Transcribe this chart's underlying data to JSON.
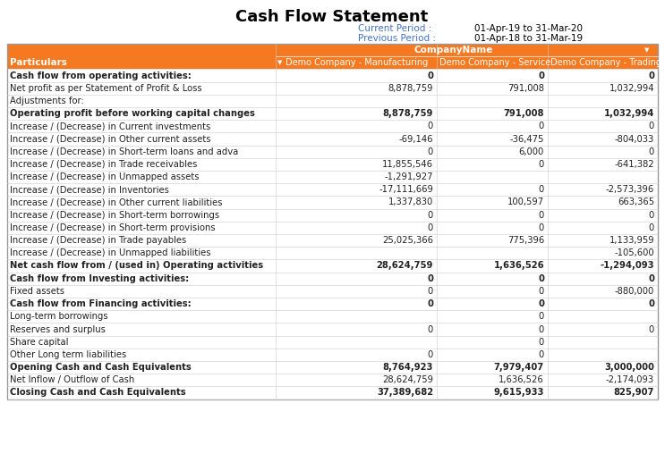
{
  "title": "Cash Flow Statement",
  "current_period_label": "Current Period :",
  "current_period_value": "01-Apr-19 to 31-Mar-20",
  "previous_period_label": "Previous Period :",
  "previous_period_value": "01-Apr-18 to 31-Mar-19",
  "col_header1": "CompanyName",
  "col_headers": [
    "Particulars",
    "Demo Company - Manufacturing",
    "Demo Company - Service",
    "Demo Company - Trading"
  ],
  "rows": [
    {
      "label": "Cash flow from operating activities:",
      "bold": true,
      "values": [
        "0",
        "0",
        "0"
      ]
    },
    {
      "label": "Net profit as per Statement of Profit & Loss",
      "bold": false,
      "values": [
        "8,878,759",
        "791,008",
        "1,032,994"
      ]
    },
    {
      "label": "Adjustments for:",
      "bold": false,
      "values": [
        "",
        "",
        ""
      ]
    },
    {
      "label": "Operating profit before working capital changes",
      "bold": true,
      "values": [
        "8,878,759",
        "791,008",
        "1,032,994"
      ]
    },
    {
      "label": "Increase / (Decrease) in Current investments",
      "bold": false,
      "values": [
        "0",
        "0",
        "0"
      ]
    },
    {
      "label": "Increase / (Decrease) in Other current assets",
      "bold": false,
      "values": [
        "-69,146",
        "-36,475",
        "-804,033"
      ]
    },
    {
      "label": "Increase / (Decrease) in Short-term loans and adva",
      "bold": false,
      "values": [
        "0",
        "6,000",
        "0"
      ]
    },
    {
      "label": "Increase / (Decrease) in Trade receivables",
      "bold": false,
      "values": [
        "11,855,546",
        "0",
        "-641,382"
      ]
    },
    {
      "label": "Increase / (Decrease) in Unmapped assets",
      "bold": false,
      "values": [
        "-1,291,927",
        "",
        ""
      ]
    },
    {
      "label": "Increase / (Decrease) in Inventories",
      "bold": false,
      "values": [
        "-17,111,669",
        "0",
        "-2,573,396"
      ]
    },
    {
      "label": "Increase / (Decrease) in Other current liabilities",
      "bold": false,
      "values": [
        "1,337,830",
        "100,597",
        "663,365"
      ]
    },
    {
      "label": "Increase / (Decrease) in Short-term borrowings",
      "bold": false,
      "values": [
        "0",
        "0",
        "0"
      ]
    },
    {
      "label": "Increase / (Decrease) in Short-term provisions",
      "bold": false,
      "values": [
        "0",
        "0",
        "0"
      ]
    },
    {
      "label": "Increase / (Decrease) in Trade payables",
      "bold": false,
      "values": [
        "25,025,366",
        "775,396",
        "1,133,959"
      ]
    },
    {
      "label": "Increase / (Decrease) in Unmapped liabilities",
      "bold": false,
      "values": [
        "",
        "",
        "-105,600"
      ]
    },
    {
      "label": "Net cash flow from / (used in) Operating activities",
      "bold": true,
      "values": [
        "28,624,759",
        "1,636,526",
        "-1,294,093"
      ]
    },
    {
      "label": "Cash flow from Investing activities:",
      "bold": true,
      "values": [
        "0",
        "0",
        "0"
      ]
    },
    {
      "label": "Fixed assets",
      "bold": false,
      "values": [
        "0",
        "0",
        "-880,000"
      ]
    },
    {
      "label": "Cash flow from Financing activities:",
      "bold": true,
      "values": [
        "0",
        "0",
        "0"
      ]
    },
    {
      "label": "Long-term borrowings",
      "bold": false,
      "values": [
        "",
        "0",
        ""
      ]
    },
    {
      "label": "Reserves and surplus",
      "bold": false,
      "values": [
        "0",
        "0",
        "0"
      ]
    },
    {
      "label": "Share capital",
      "bold": false,
      "values": [
        "",
        "0",
        ""
      ]
    },
    {
      "label": "Other Long term liabilities",
      "bold": false,
      "values": [
        "0",
        "0",
        ""
      ]
    },
    {
      "label": "Opening Cash and Cash Equivalents",
      "bold": true,
      "values": [
        "8,764,923",
        "7,979,407",
        "3,000,000"
      ]
    },
    {
      "label": "Net Inflow / Outflow of Cash",
      "bold": false,
      "values": [
        "28,624,759",
        "1,636,526",
        "-2,174,093"
      ]
    },
    {
      "label": "Closing Cash and Cash Equivalents",
      "bold": true,
      "values": [
        "37,389,682",
        "9,615,933",
        "825,907"
      ]
    }
  ],
  "orange_color": "#F47920",
  "white_color": "#FFFFFF",
  "text_dark": "#222222",
  "border_color": "#CCCCCC",
  "title_color": "#000000",
  "period_label_color": "#4472C4",
  "period_value_color": "#000000",
  "fig_width": 7.43,
  "fig_height": 5.17,
  "dpi": 100
}
